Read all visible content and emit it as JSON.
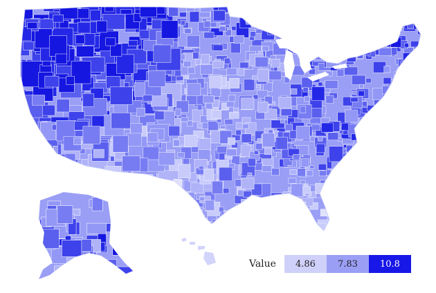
{
  "map": {
    "colors": {
      "background": "#ffffff",
      "state_border": "#f2f4ff",
      "low": "#d2d4fb",
      "mid": "#9a9ef5",
      "high": "#1c1ce6",
      "hue_shades": [
        "#dfe1fd",
        "#c9ccfb",
        "#b0b3f8",
        "#9397f5",
        "#777cf2",
        "#5a5fee",
        "#3e42ea",
        "#2428e6",
        "#1516e0"
      ]
    },
    "regions": {
      "pacific_northwest": "high",
      "northern_rockies": "high",
      "california": "mid_high",
      "great_basin": "low_mid",
      "southwest": "low_mid",
      "great_plains": "low",
      "upper_midwest": "mid",
      "midwest": "mid",
      "appalachia": "mid_high",
      "southeast": "mid",
      "texas": "low_mid",
      "florida": "low",
      "northeast": "mid",
      "maine": "high",
      "alaska": "mid_high",
      "hawaii": "low"
    }
  },
  "legend": {
    "title": "Value",
    "items": [
      {
        "label": "4.86",
        "color": "#cfd1fa",
        "text_color": "#222222"
      },
      {
        "label": "7.83",
        "color": "#9a9ef5",
        "text_color": "#222222"
      },
      {
        "label": "10.8",
        "color": "#1717e8",
        "text_color": "#ffffff"
      }
    ]
  }
}
